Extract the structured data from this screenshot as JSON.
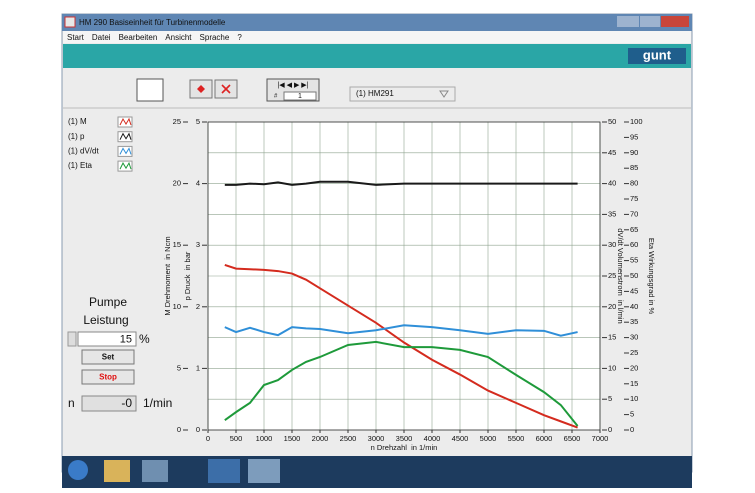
{
  "window": {
    "title": "HM 290 Basiseinheit für Turbinenmodelle"
  },
  "menu": [
    "Start",
    "Datei",
    "Bearbeiten",
    "Ansicht",
    "Sprache",
    "?"
  ],
  "logo": "gunt",
  "toolbar": {
    "record": 1,
    "device": "(1) HM291"
  },
  "pump": {
    "title": "Pumpe",
    "subtitle": "Leistung",
    "power": 15,
    "power_unit": "%",
    "set": "Set",
    "stop": "Stop",
    "speed_label": "n",
    "speed": "-0",
    "speed_unit": "1/min"
  },
  "chart_data": {
    "type": "line",
    "x_label": "n Drehzahl  in 1/min",
    "x": [
      300,
      500,
      750,
      1000,
      1250,
      1500,
      1750,
      2000,
      2500,
      3000,
      3500,
      4000,
      4500,
      5000,
      5500,
      6000,
      6300,
      6600
    ],
    "xlim": [
      0,
      7000
    ],
    "xticks": [
      0,
      500,
      1000,
      1500,
      2000,
      2500,
      3000,
      3500,
      4000,
      4500,
      5000,
      5500,
      6000,
      6500,
      7000
    ],
    "grid": true,
    "axes": [
      {
        "label": "M Drehmoment  in Ncm",
        "side": "left",
        "lim": [
          0,
          25
        ],
        "ticks": [
          0,
          5,
          10,
          15,
          20,
          25
        ]
      },
      {
        "label": "p Druck  in bar",
        "side": "left",
        "lim": [
          0,
          5
        ],
        "ticks": [
          0,
          1,
          2,
          3,
          4,
          5
        ]
      },
      {
        "label": "dV/dt Volumenstrom  in l/min",
        "side": "right",
        "lim": [
          0,
          50
        ],
        "ticks": [
          0,
          5,
          10,
          15,
          20,
          25,
          30,
          35,
          40,
          45,
          50
        ]
      },
      {
        "label": "Eta Wirkungsgrad in %",
        "side": "right",
        "lim": [
          0,
          100
        ],
        "ticks": [
          0,
          5,
          10,
          15,
          20,
          25,
          30,
          35,
          40,
          45,
          50,
          55,
          60,
          65,
          70,
          75,
          80,
          85,
          90,
          95,
          100
        ]
      }
    ],
    "series": [
      {
        "name": "(1) M",
        "color": "#d42b1e",
        "axis": 0,
        "values": [
          13.4,
          13.1,
          13.05,
          13.0,
          12.9,
          12.7,
          12.2,
          11.5,
          10.1,
          8.7,
          7.1,
          5.7,
          4.5,
          3.2,
          2.2,
          1.2,
          0.7,
          0.2
        ]
      },
      {
        "name": "(1) p",
        "color": "#1a1a1a",
        "axis": 1,
        "values": [
          3.98,
          3.98,
          4.0,
          3.99,
          4.02,
          3.98,
          4.0,
          4.03,
          4.03,
          3.98,
          4.0,
          4.0,
          4.0,
          4.0,
          4.0,
          4.0,
          4.0,
          4.0
        ]
      },
      {
        "name": "(1) dV/dt",
        "color": "#2f8fd8",
        "axis": 2,
        "values": [
          16.7,
          15.9,
          16.6,
          15.9,
          15.4,
          16.7,
          16.5,
          16.4,
          15.7,
          16.2,
          17.0,
          16.7,
          16.2,
          15.6,
          16.2,
          16.1,
          15.3,
          15.9
        ]
      },
      {
        "name": "(1) Eta",
        "color": "#1e9a3a",
        "axis": 3,
        "values": [
          3.2,
          5.8,
          8.8,
          14.6,
          16.2,
          19.5,
          22.1,
          23.7,
          27.6,
          28.6,
          26.9,
          26.9,
          26.0,
          23.7,
          17.9,
          12.3,
          8.1,
          1.3
        ]
      }
    ]
  }
}
